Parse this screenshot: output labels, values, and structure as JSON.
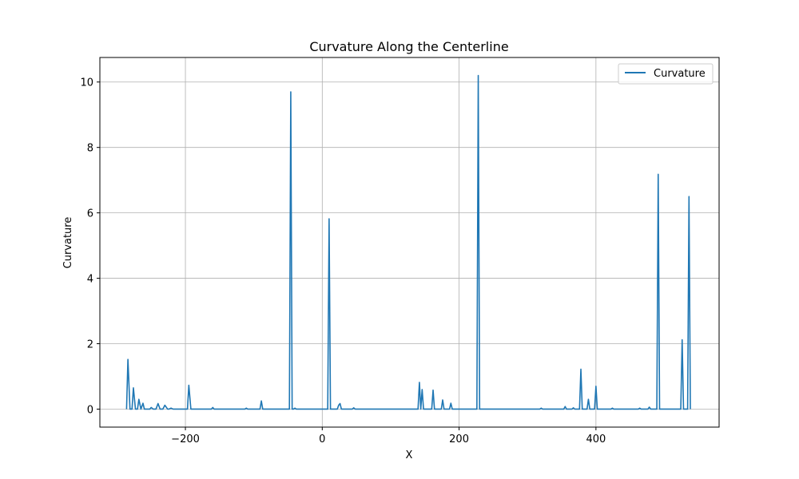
{
  "chart_data": {
    "type": "line",
    "title": "Curvature Along the Centerline",
    "xlabel": "X",
    "ylabel": "Curvature",
    "xlim": [
      -325,
      580
    ],
    "ylim": [
      -0.55,
      10.75
    ],
    "xticks": [
      -200,
      0,
      200,
      400
    ],
    "xtick_labels": [
      "−200",
      "0",
      "200",
      "400"
    ],
    "yticks": [
      0,
      2,
      4,
      6,
      8,
      10
    ],
    "ytick_labels": [
      "0",
      "2",
      "4",
      "6",
      "8",
      "10"
    ],
    "grid": true,
    "legend_position": "top-right",
    "series": [
      {
        "name": "Curvature",
        "color": "#1f77b4",
        "x": [
          -286,
          -284,
          -281,
          -278,
          -276,
          -273,
          -270,
          -268,
          -265,
          -262,
          -260,
          -257,
          -252,
          -250,
          -247,
          -243,
          -240,
          -237,
          -233,
          -230,
          -226,
          -224,
          -221,
          -218,
          -214,
          -211,
          -197,
          -195,
          -192,
          -189,
          -162,
          -160,
          -158,
          -113,
          -111,
          -109,
          -91,
          -89,
          -87,
          -84,
          -48,
          -46,
          -44,
          -42,
          -40,
          -38,
          8,
          10,
          12,
          14,
          16,
          22,
          24,
          26,
          28,
          30,
          44,
          46,
          48,
          140,
          142,
          144,
          146,
          148,
          150,
          152,
          160,
          162,
          164,
          166,
          174,
          176,
          178,
          180,
          186,
          188,
          190,
          226,
          228,
          230,
          232,
          318,
          320,
          322,
          353,
          355,
          357,
          365,
          367,
          369,
          376,
          378,
          380,
          382,
          387,
          389,
          391,
          398,
          400,
          402,
          404,
          422,
          424,
          426,
          462,
          464,
          466,
          476,
          478,
          480,
          489,
          491,
          493,
          495,
          524,
          526,
          528,
          530,
          532,
          534,
          536,
          538
        ],
        "y": [
          0,
          1.52,
          0,
          0,
          0.65,
          0,
          0,
          0.3,
          0,
          0.18,
          0,
          0,
          0,
          0.05,
          0,
          0,
          0.17,
          0,
          0,
          0.12,
          0,
          0,
          0.03,
          0,
          0,
          0,
          0,
          0.73,
          0,
          0,
          0,
          0.05,
          0,
          0,
          0.03,
          0,
          0,
          0.25,
          0,
          0,
          0,
          9.7,
          0,
          0,
          0.03,
          0,
          0,
          5.82,
          0,
          0,
          0,
          0,
          0.12,
          0.17,
          0,
          0,
          0,
          0.04,
          0,
          0,
          0.82,
          0,
          0.6,
          0,
          0,
          0,
          0,
          0.58,
          0,
          0,
          0,
          0.28,
          0,
          0,
          0,
          0.18,
          0,
          0,
          10.2,
          0,
          0,
          0,
          0.03,
          0,
          0,
          0.08,
          0,
          0,
          0.04,
          0,
          0,
          1.22,
          0,
          0,
          0,
          0.3,
          0,
          0,
          0.7,
          0,
          0,
          0,
          0.03,
          0,
          0,
          0.03,
          0,
          0,
          0.06,
          0,
          0,
          7.18,
          0,
          0,
          0,
          2.12,
          0,
          0,
          0,
          0,
          6.5,
          0
        ]
      }
    ]
  }
}
